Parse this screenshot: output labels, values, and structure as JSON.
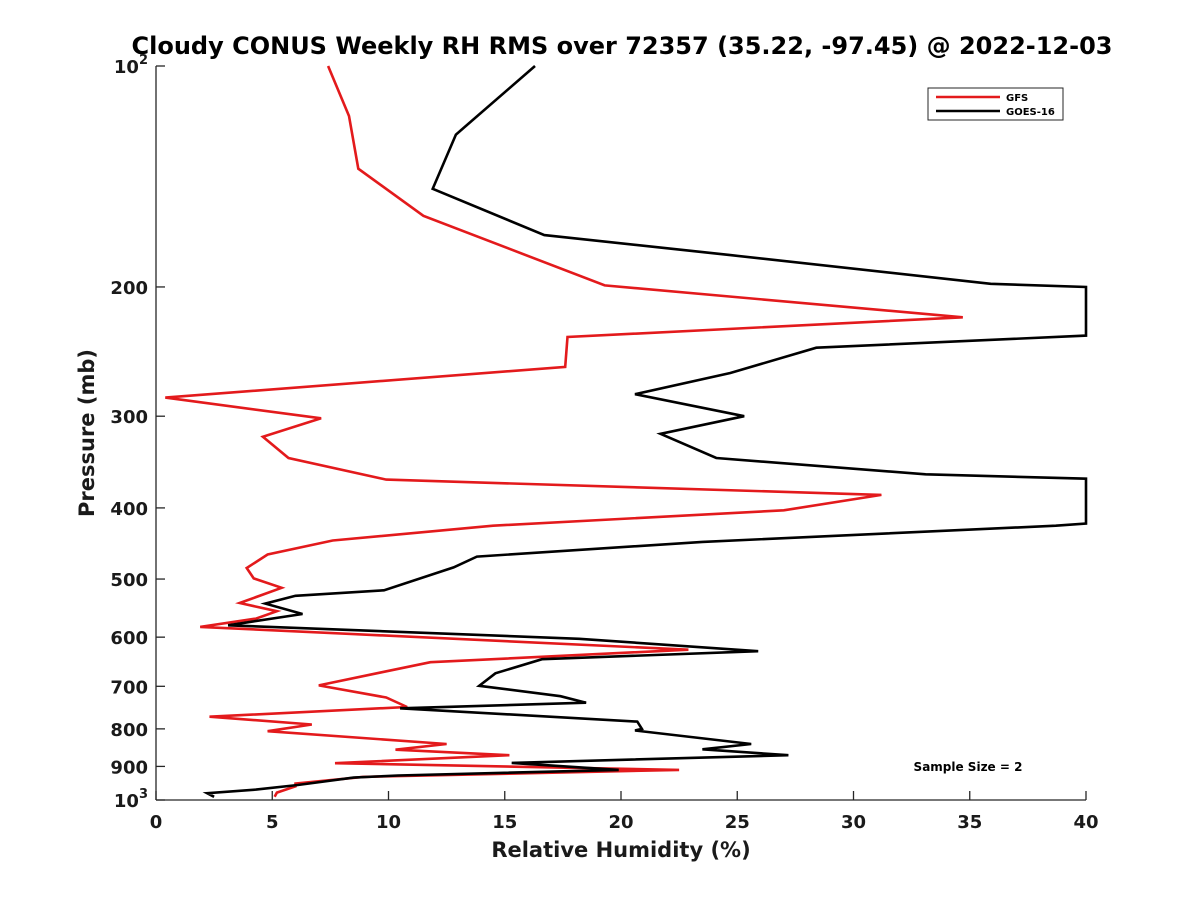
{
  "chart_data": {
    "type": "line",
    "title": "Cloudy CONUS Weekly RH RMS over 72357 (35.22, -97.45) @ 2022-12-03",
    "xlabel": "Relative Humidity (%)",
    "ylabel": "Pressure (mb)",
    "xlim": [
      0,
      40
    ],
    "ylim": [
      100,
      1000
    ],
    "y_scale": "log",
    "y_reversed": true,
    "grid": false,
    "legend_position": "top-right",
    "x_ticks": [
      "0",
      "5",
      "10",
      "15",
      "20",
      "25",
      "30",
      "35",
      "40"
    ],
    "y_ticks": [
      {
        "value": 100,
        "base": "10",
        "exp": "2"
      },
      {
        "value": 200,
        "label": "200"
      },
      {
        "value": 300,
        "label": "300"
      },
      {
        "value": 400,
        "label": "400"
      },
      {
        "value": 500,
        "label": "500"
      },
      {
        "value": 600,
        "label": "600"
      },
      {
        "value": 700,
        "label": "700"
      },
      {
        "value": 800,
        "label": "800"
      },
      {
        "value": 900,
        "label": "900"
      },
      {
        "value": 1000,
        "base": "10",
        "exp": "3"
      }
    ],
    "annotation": "Sample Size = 2",
    "series": [
      {
        "name": "GFS",
        "color": "#e31a1c",
        "points": [
          [
            7.4,
            100
          ],
          [
            8.3,
            117
          ],
          [
            8.7,
            138
          ],
          [
            11.5,
            160
          ],
          [
            19.3,
            199
          ],
          [
            34.7,
            220
          ],
          [
            17.7,
            234
          ],
          [
            17.6,
            257
          ],
          [
            0.4,
            283
          ],
          [
            7.1,
            302
          ],
          [
            4.6,
            320
          ],
          [
            5.7,
            342
          ],
          [
            9.9,
            366
          ],
          [
            31.2,
            384
          ],
          [
            27.0,
            403
          ],
          [
            14.5,
            423
          ],
          [
            7.6,
            443
          ],
          [
            4.8,
            463
          ],
          [
            3.9,
            483
          ],
          [
            4.2,
            499
          ],
          [
            5.4,
            514
          ],
          [
            3.6,
            539
          ],
          [
            5.2,
            553
          ],
          [
            4.3,
            566
          ],
          [
            1.9,
            581
          ],
          [
            22.9,
            624
          ],
          [
            11.8,
            649
          ],
          [
            9.7,
            670
          ],
          [
            7.0,
            698
          ],
          [
            9.9,
            725
          ],
          [
            10.8,
            747
          ],
          [
            2.3,
            770
          ],
          [
            6.7,
            789
          ],
          [
            4.8,
            806
          ],
          [
            12.5,
            839
          ],
          [
            10.3,
            854
          ],
          [
            15.2,
            869
          ],
          [
            7.7,
            891
          ],
          [
            22.5,
            910
          ],
          [
            8.9,
            930
          ],
          [
            6.0,
            950
          ],
          [
            6.0,
            958
          ],
          [
            5.2,
            977
          ],
          [
            5.1,
            990
          ]
        ]
      },
      {
        "name": "GOES-16",
        "color": "#000000",
        "points": [
          [
            16.3,
            100
          ],
          [
            12.9,
            124
          ],
          [
            11.9,
            147
          ],
          [
            16.7,
            170
          ],
          [
            24.7,
            181
          ],
          [
            35.9,
            198
          ],
          [
            40.0,
            200
          ],
          [
            40.0,
            233
          ],
          [
            28.4,
            242
          ],
          [
            24.7,
            262
          ],
          [
            20.6,
            280
          ],
          [
            25.3,
            300
          ],
          [
            21.7,
            317
          ],
          [
            24.1,
            342
          ],
          [
            33.1,
            360
          ],
          [
            40.0,
            365
          ],
          [
            40.0,
            420
          ],
          [
            38.7,
            423
          ],
          [
            23.5,
            445
          ],
          [
            13.8,
            466
          ],
          [
            12.8,
            482
          ],
          [
            9.8,
            518
          ],
          [
            6.0,
            527
          ],
          [
            4.7,
            540
          ],
          [
            6.3,
            558
          ],
          [
            3.1,
            578
          ],
          [
            18.2,
            603
          ],
          [
            25.9,
            627
          ],
          [
            16.6,
            643
          ],
          [
            14.6,
            672
          ],
          [
            13.9,
            699
          ],
          [
            17.4,
            722
          ],
          [
            18.5,
            737
          ],
          [
            10.5,
            750
          ],
          [
            20.7,
            782
          ],
          [
            20.9,
            800
          ],
          [
            20.6,
            804
          ],
          [
            25.6,
            839
          ],
          [
            23.5,
            853
          ],
          [
            27.2,
            869
          ],
          [
            15.3,
            890
          ],
          [
            19.9,
            910
          ],
          [
            10.4,
            926
          ],
          [
            8.5,
            932
          ],
          [
            6.1,
            954
          ],
          [
            4.3,
            968
          ],
          [
            2.2,
            979
          ],
          [
            2.5,
            990
          ]
        ]
      }
    ]
  }
}
